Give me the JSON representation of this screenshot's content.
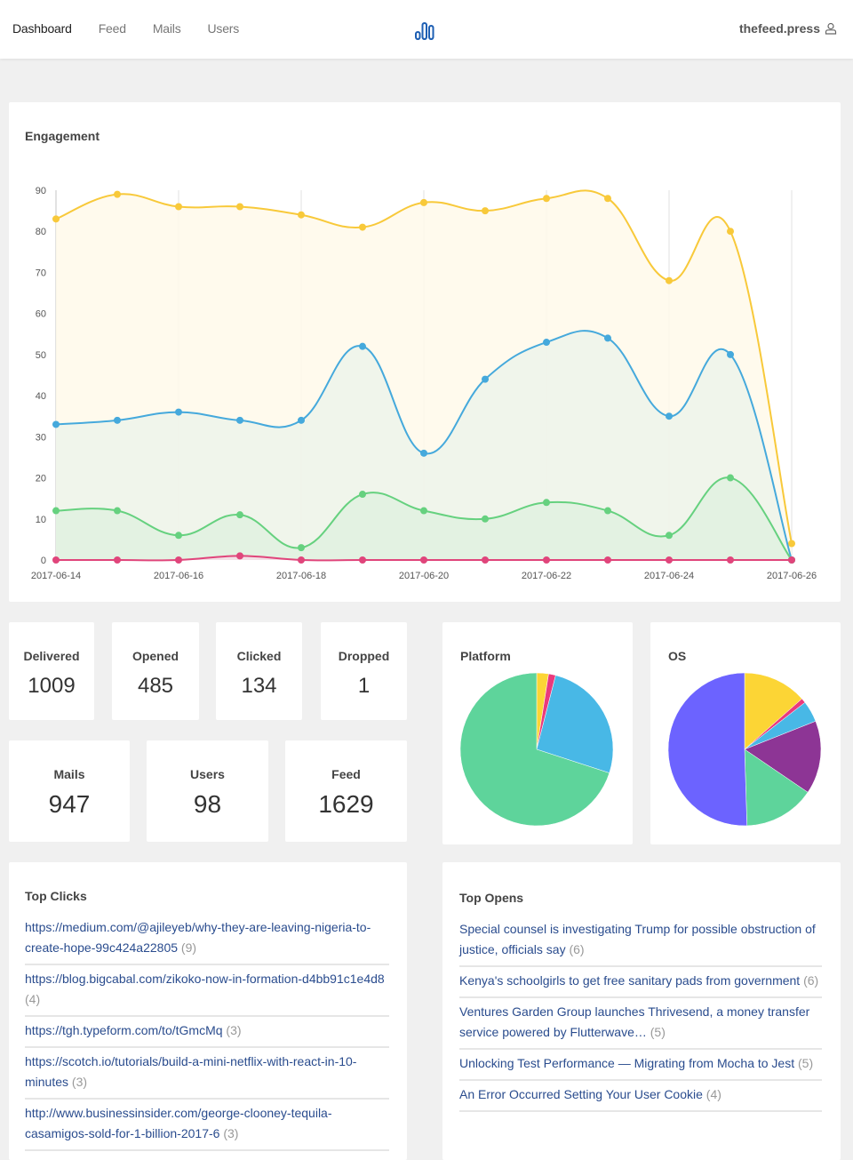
{
  "nav": {
    "items": [
      {
        "label": "Dashboard",
        "active": true
      },
      {
        "label": "Feed",
        "active": false
      },
      {
        "label": "Mails",
        "active": false
      },
      {
        "label": "Users",
        "active": false
      }
    ],
    "logo_icon": "bar-chart-logo-icon",
    "account": "thefeed.press",
    "account_icon": "user-icon"
  },
  "engagement": {
    "title": "Engagement"
  },
  "stats_row1": [
    {
      "label": "Delivered",
      "value": "1009"
    },
    {
      "label": "Opened",
      "value": "485"
    },
    {
      "label": "Clicked",
      "value": "134"
    },
    {
      "label": "Dropped",
      "value": "1"
    }
  ],
  "stats_row2": [
    {
      "label": "Mails",
      "value": "947"
    },
    {
      "label": "Users",
      "value": "98"
    },
    {
      "label": "Feed",
      "value": "1629"
    }
  ],
  "platform": {
    "title": "Platform"
  },
  "os": {
    "title": "OS"
  },
  "top_clicks": {
    "title": "Top Clicks",
    "items": [
      {
        "text": "https://medium.com/@ajileyeb/why-they-are-leaving-nigeria-to-create-hope-99c424a22805",
        "count": "(9)"
      },
      {
        "text": "https://blog.bigcabal.com/zikoko-now-in-formation-d4bb91c1e4d8",
        "count": "(4)"
      },
      {
        "text": "https://tgh.typeform.com/to/tGmcMq",
        "count": "(3)"
      },
      {
        "text": "https://scotch.io/tutorials/build-a-mini-netflix-with-react-in-10-minutes",
        "count": "(3)"
      },
      {
        "text": "http://www.businessinsider.com/george-clooney-tequila-casamigos-sold-for-1-billion-2017-6",
        "count": "(3)"
      }
    ]
  },
  "top_opens": {
    "title": "Top Opens",
    "items": [
      {
        "text": "Special counsel is investigating Trump for possible obstruction of justice, officials say",
        "count": "(6)"
      },
      {
        "text": "Kenya's schoolgirls to get free sanitary pads from government",
        "count": "(6)"
      },
      {
        "text": "Ventures Garden Group launches Thrivesend, a money transfer service powered by Flutterwave…",
        "count": "(5)"
      },
      {
        "text": "Unlocking Test Performance — Migrating from Mocha to Jest",
        "count": "(5)"
      },
      {
        "text": "An Error Occurred Setting Your User Cookie",
        "count": "(4)"
      }
    ]
  },
  "chart_data": [
    {
      "type": "area",
      "title": "Engagement",
      "x": [
        "2017-06-14",
        "2017-06-15",
        "2017-06-16",
        "2017-06-17",
        "2017-06-18",
        "2017-06-19",
        "2017-06-20",
        "2017-06-21",
        "2017-06-22",
        "2017-06-23",
        "2017-06-24",
        "2017-06-25",
        "2017-06-26"
      ],
      "xtick_labels": [
        "2017-06-14",
        "2017-06-16",
        "2017-06-18",
        "2017-06-20",
        "2017-06-22",
        "2017-06-24",
        "2017-06-26"
      ],
      "ylim": [
        0,
        90
      ],
      "yticks": [
        0,
        10,
        20,
        30,
        40,
        50,
        60,
        70,
        80,
        90
      ],
      "grid": "vertical",
      "legend": "none",
      "series": [
        {
          "name": "Delivered",
          "color": "#f8c93a",
          "fill": "#fff9ea",
          "values": [
            83,
            89,
            86,
            86,
            84,
            81,
            87,
            85,
            88,
            88,
            68,
            80,
            4
          ]
        },
        {
          "name": "Opened",
          "color": "#45a9dc",
          "fill": "#edf3ea",
          "values": [
            33,
            34,
            36,
            34,
            34,
            52,
            26,
            44,
            53,
            54,
            35,
            50,
            0
          ]
        },
        {
          "name": "Clicked",
          "color": "#66d17f",
          "fill": "#e1f1e1",
          "values": [
            12,
            12,
            6,
            11,
            3,
            16,
            12,
            10,
            14,
            12,
            6,
            20,
            0
          ]
        },
        {
          "name": "Dropped",
          "color": "#e0457b",
          "fill": "#f6dde6",
          "values": [
            0,
            0,
            0,
            1,
            0,
            0,
            0,
            0,
            0,
            0,
            0,
            0,
            0
          ]
        }
      ]
    },
    {
      "type": "pie",
      "title": "Platform",
      "slices": [
        {
          "color": "#fcd535",
          "value": 2.5
        },
        {
          "color": "#ea3a7c",
          "value": 1.5
        },
        {
          "color": "#48b8e6",
          "value": 26
        },
        {
          "color": "#5ed49b",
          "value": 70
        }
      ]
    },
    {
      "type": "pie",
      "title": "OS",
      "slices": [
        {
          "color": "#fcd535",
          "value": 13.5
        },
        {
          "color": "#ea3a7c",
          "value": 1
        },
        {
          "color": "#48b8e6",
          "value": 4.5
        },
        {
          "color": "#8d3595",
          "value": 15.5
        },
        {
          "color": "#5ed49b",
          "value": 15
        },
        {
          "color": "#6c63ff",
          "value": 50.5
        }
      ]
    }
  ]
}
